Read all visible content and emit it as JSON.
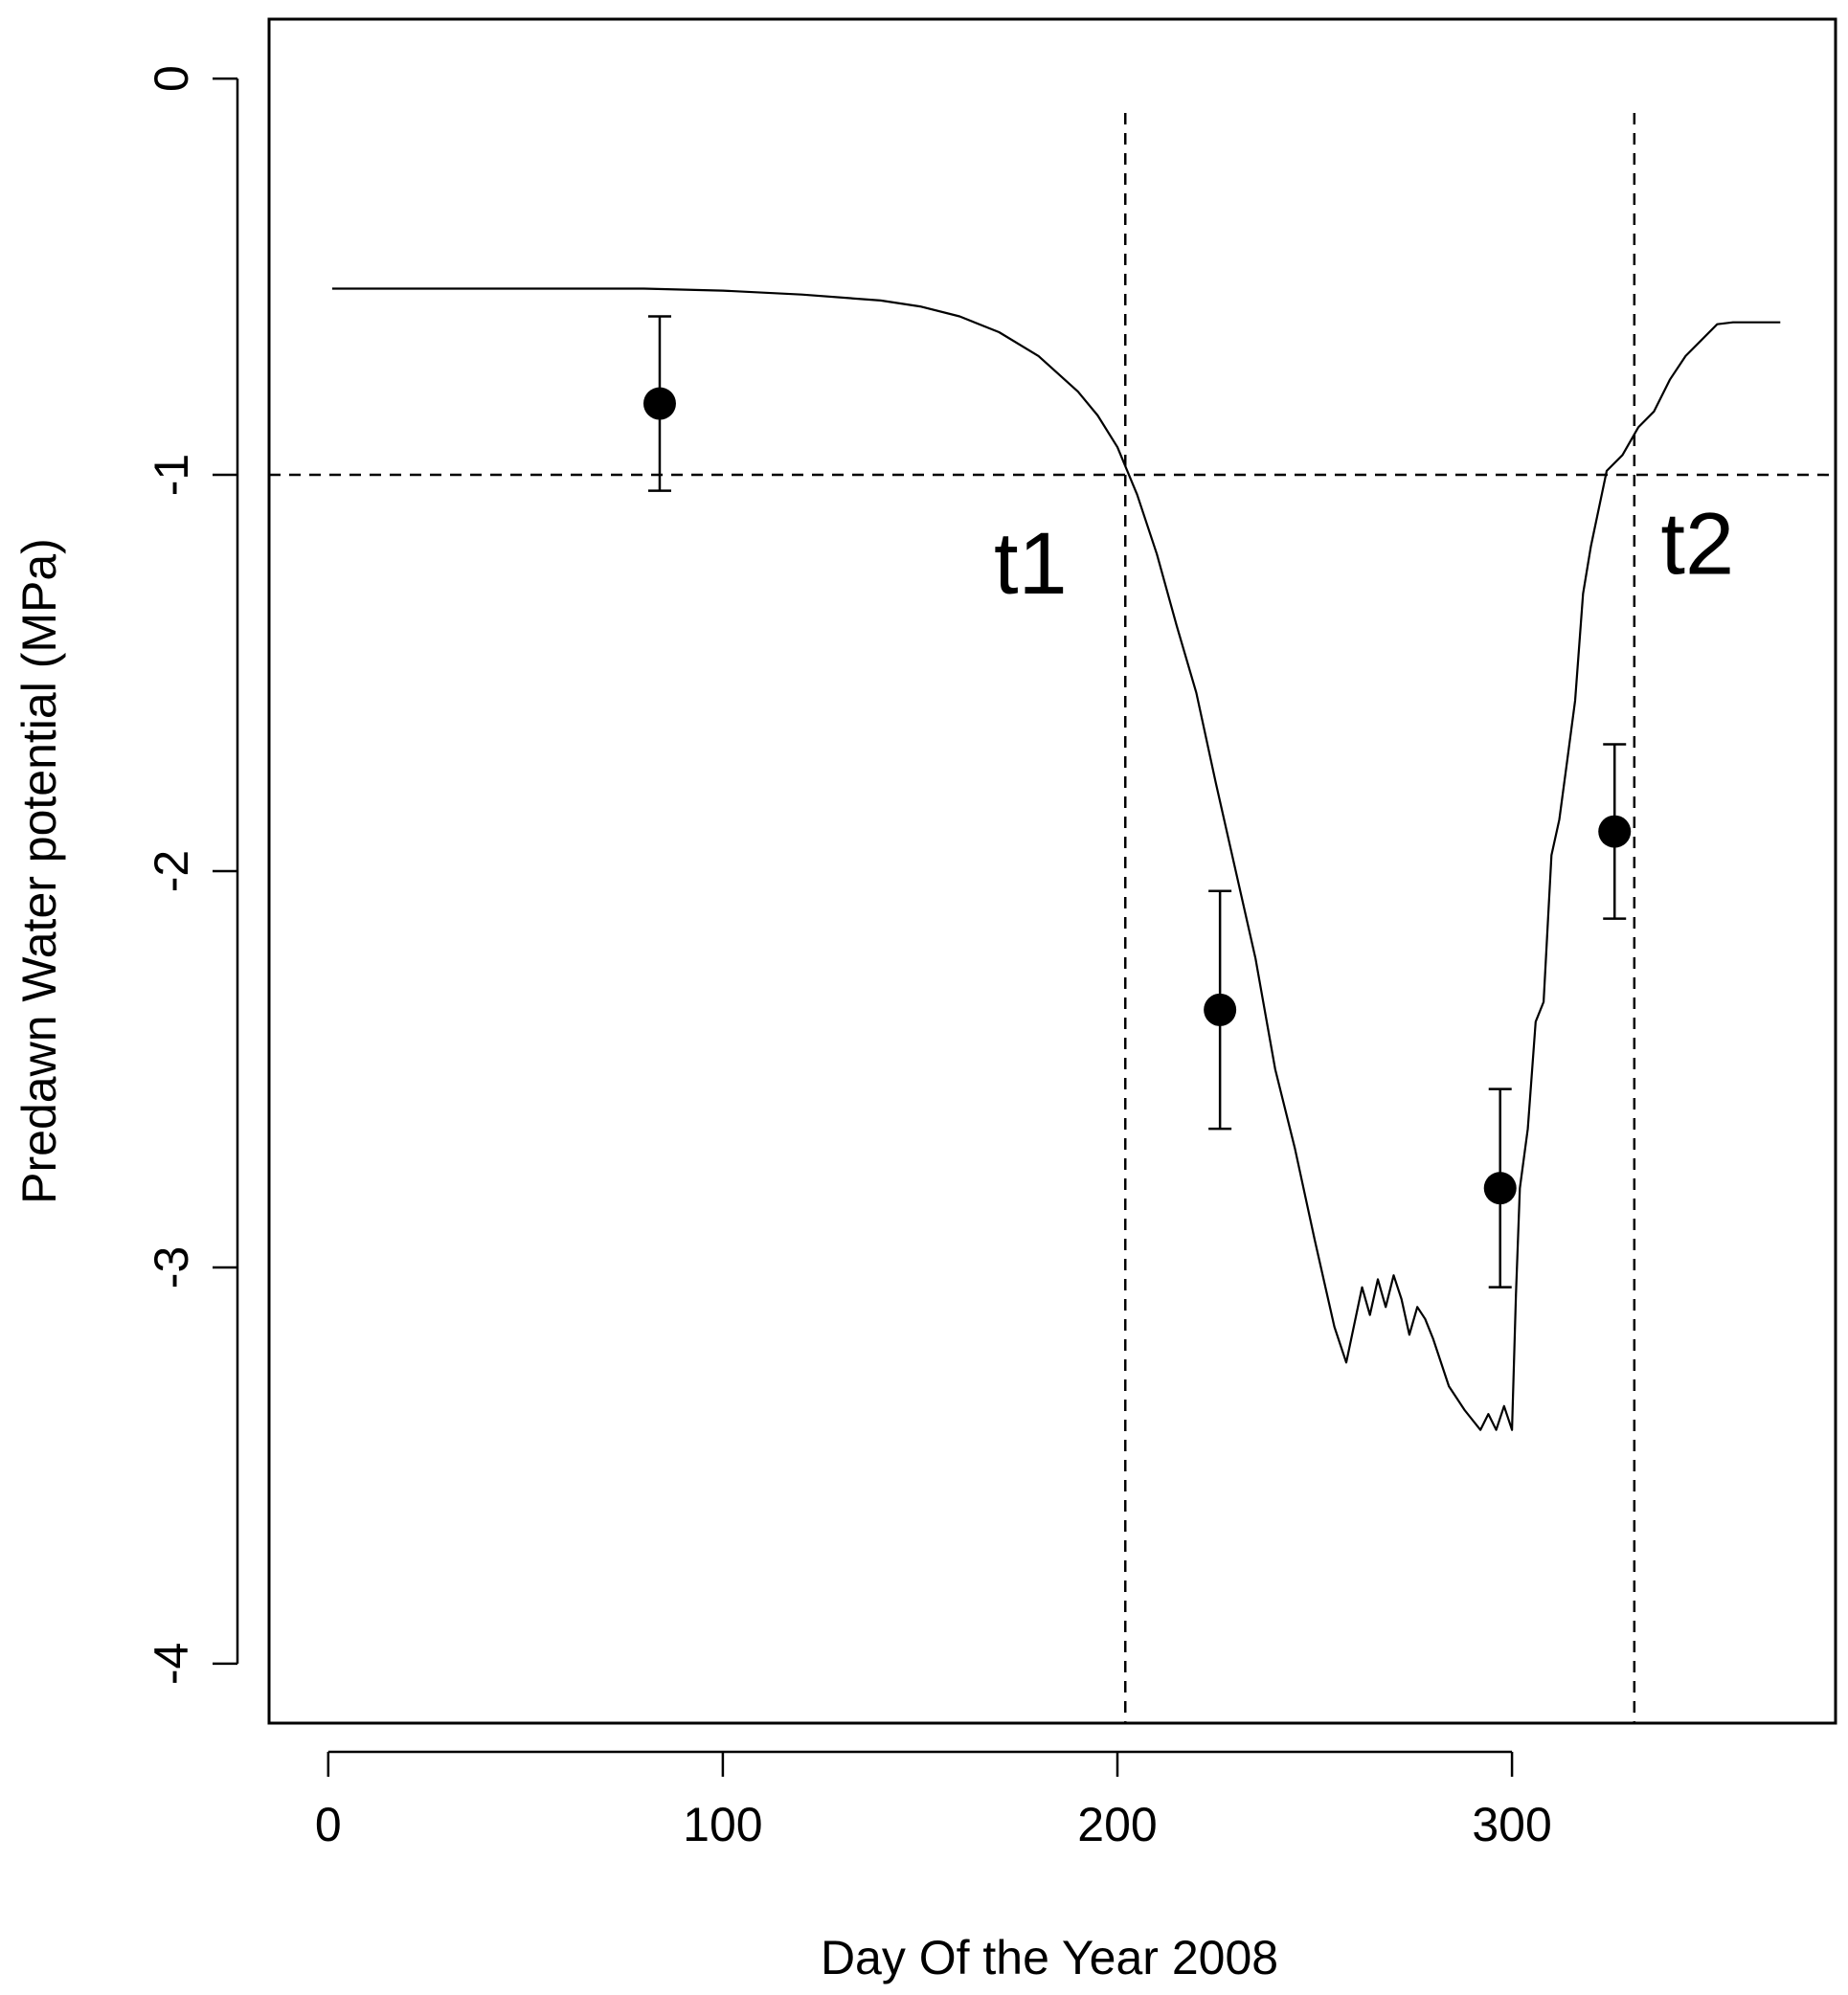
{
  "chart_data": {
    "type": "line",
    "title": "",
    "xlabel": "Day Of the Year 2008",
    "ylabel": "Predawn Water potential (MPa)",
    "xlim": [
      -15,
      382
    ],
    "ylim": [
      -4.15,
      0.15
    ],
    "xticks": [
      0,
      100,
      200,
      300
    ],
    "xtick_labels": [
      "0",
      "100",
      "200",
      "300"
    ],
    "yticks": [
      0,
      -1,
      -2,
      -3,
      -4
    ],
    "ytick_labels": [
      "0",
      "-1",
      "-2",
      "-3",
      "-4"
    ],
    "grid": false,
    "legend": "none",
    "series": [
      {
        "type": "line",
        "x": [
          1,
          20,
          40,
          60,
          80,
          100,
          120,
          140,
          150,
          160,
          170,
          180,
          190,
          195,
          200,
          205,
          210,
          215,
          220,
          225,
          230,
          235,
          240,
          245,
          250,
          255,
          258,
          262,
          264,
          266,
          268,
          270,
          272,
          274,
          276,
          278,
          280,
          284,
          288,
          292,
          294,
          296,
          298,
          300,
          301,
          302,
          304,
          306,
          308,
          310,
          312,
          314,
          316,
          318,
          320,
          324,
          328,
          332,
          336,
          340,
          344,
          348,
          352,
          356,
          360,
          368
        ],
        "y": [
          -0.53,
          -0.53,
          -0.53,
          -0.53,
          -0.53,
          -0.535,
          -0.545,
          -0.56,
          -0.575,
          -0.6,
          -0.64,
          -0.7,
          -0.79,
          -0.85,
          -0.93,
          -1.05,
          -1.2,
          -1.38,
          -1.55,
          -1.78,
          -2.0,
          -2.22,
          -2.5,
          -2.7,
          -2.93,
          -3.15,
          -3.24,
          -3.05,
          -3.12,
          -3.03,
          -3.1,
          -3.02,
          -3.08,
          -3.17,
          -3.1,
          -3.13,
          -3.18,
          -3.3,
          -3.36,
          -3.41,
          -3.37,
          -3.41,
          -3.35,
          -3.41,
          -3.07,
          -2.8,
          -2.65,
          -2.38,
          -2.33,
          -1.96,
          -1.87,
          -1.72,
          -1.57,
          -1.3,
          -1.18,
          -0.99,
          -0.95,
          -0.88,
          -0.84,
          -0.76,
          -0.7,
          -0.66,
          -0.62,
          -0.615,
          -0.615,
          -0.615
        ]
      },
      {
        "type": "scatter",
        "x": [
          84,
          226,
          297,
          326
        ],
        "y": [
          -0.82,
          -2.35,
          -2.8,
          -1.9
        ],
        "error": [
          0.22,
          0.3,
          0.25,
          0.22
        ]
      }
    ],
    "reference_lines": {
      "horizontal_y": -1,
      "vertical_x": [
        202,
        331
      ]
    },
    "annotations": [
      {
        "text": "t1",
        "x": 178,
        "y": -1.3
      },
      {
        "text": "t2",
        "x": 347,
        "y": -1.25
      }
    ]
  }
}
